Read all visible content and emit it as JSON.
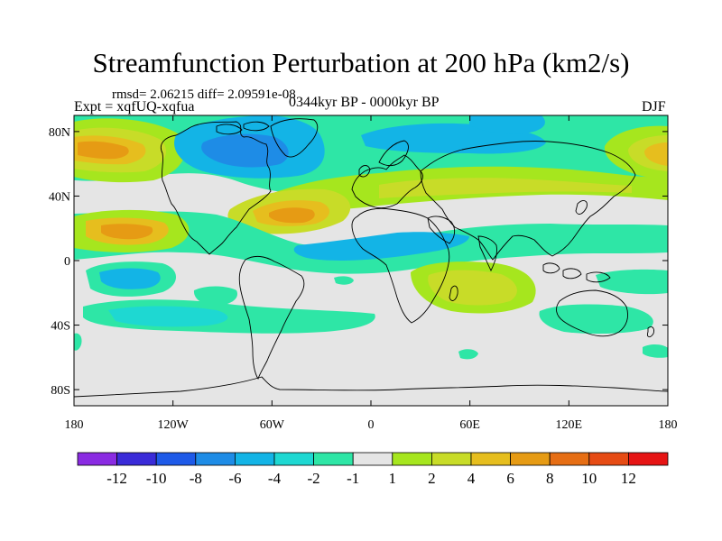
{
  "header": {
    "title": "Streamfunction Perturbation at 200 hPa (km2/s)",
    "stats": "rmsd= 2.06215 diff= 2.09591e-08",
    "experiment": "Expt = xqfUQ-xqfua",
    "period": "0344kyr BP - 0000kyr BP",
    "season": "DJF"
  },
  "map": {
    "projection": "cylindrical equidistant",
    "lon_range": [
      -180,
      180
    ],
    "lat_range": [
      -90,
      90
    ],
    "background_color": "#E5E5E5",
    "coastline_color": "#000000",
    "x_ticks": [
      {
        "lon": -180,
        "label": "180"
      },
      {
        "lon": -120,
        "label": "120W"
      },
      {
        "lon": -60,
        "label": "60W"
      },
      {
        "lon": 0,
        "label": "0"
      },
      {
        "lon": 60,
        "label": "60E"
      },
      {
        "lon": 120,
        "label": "120E"
      },
      {
        "lon": 180,
        "label": "180"
      }
    ],
    "y_ticks": [
      {
        "lat": 80,
        "label": "80N"
      },
      {
        "lat": 40,
        "label": "40N"
      },
      {
        "lat": 0,
        "label": "0"
      },
      {
        "lat": -40,
        "label": "40S"
      },
      {
        "lat": -80,
        "label": "80S"
      }
    ]
  },
  "colorbar": {
    "colors": [
      "#8A2BE2",
      "#3A2BD8",
      "#1E5AE8",
      "#1E8CE6",
      "#13B4E6",
      "#1ED8D2",
      "#2EE6A6",
      "#E5E5E5",
      "#A6E61E",
      "#C8DC28",
      "#E6BE1E",
      "#E69B14",
      "#E66E14",
      "#E64B14",
      "#E61414"
    ],
    "levels": [
      "-12",
      "-10",
      "-8",
      "-6",
      "-4",
      "-2",
      "-1",
      "1",
      "2",
      "4",
      "6",
      "8",
      "10",
      "12"
    ]
  },
  "field_features": [
    {
      "name": "north-pacific-high-west",
      "lon": -160,
      "lat": 65,
      "value": 8
    },
    {
      "name": "north-pacific-high-east",
      "lon": 170,
      "lat": 65,
      "value": 6
    },
    {
      "name": "north-america-low",
      "lon": -75,
      "lat": 58,
      "value": -5
    },
    {
      "name": "siberia-low",
      "lon": 60,
      "lat": 70,
      "value": -3
    },
    {
      "name": "north-atlantic-high",
      "lon": -45,
      "lat": 38,
      "value": 8
    },
    {
      "name": "eurasia-ridge",
      "lon": 40,
      "lat": 50,
      "value": 3
    },
    {
      "name": "subtropical-pacific-high",
      "lon": -150,
      "lat": 22,
      "value": 6
    },
    {
      "name": "tropical-pacific-low",
      "lon": -135,
      "lat": -5,
      "value": -3
    },
    {
      "name": "tropical-atlantic-low",
      "lon": -20,
      "lat": 15,
      "value": -2
    },
    {
      "name": "indian-ocean-high",
      "lon": 55,
      "lat": -12,
      "value": 3
    },
    {
      "name": "south-pacific-low",
      "lon": -110,
      "lat": -35,
      "value": -2
    },
    {
      "name": "australia-low",
      "lon": 125,
      "lat": -35,
      "value": -2
    }
  ]
}
